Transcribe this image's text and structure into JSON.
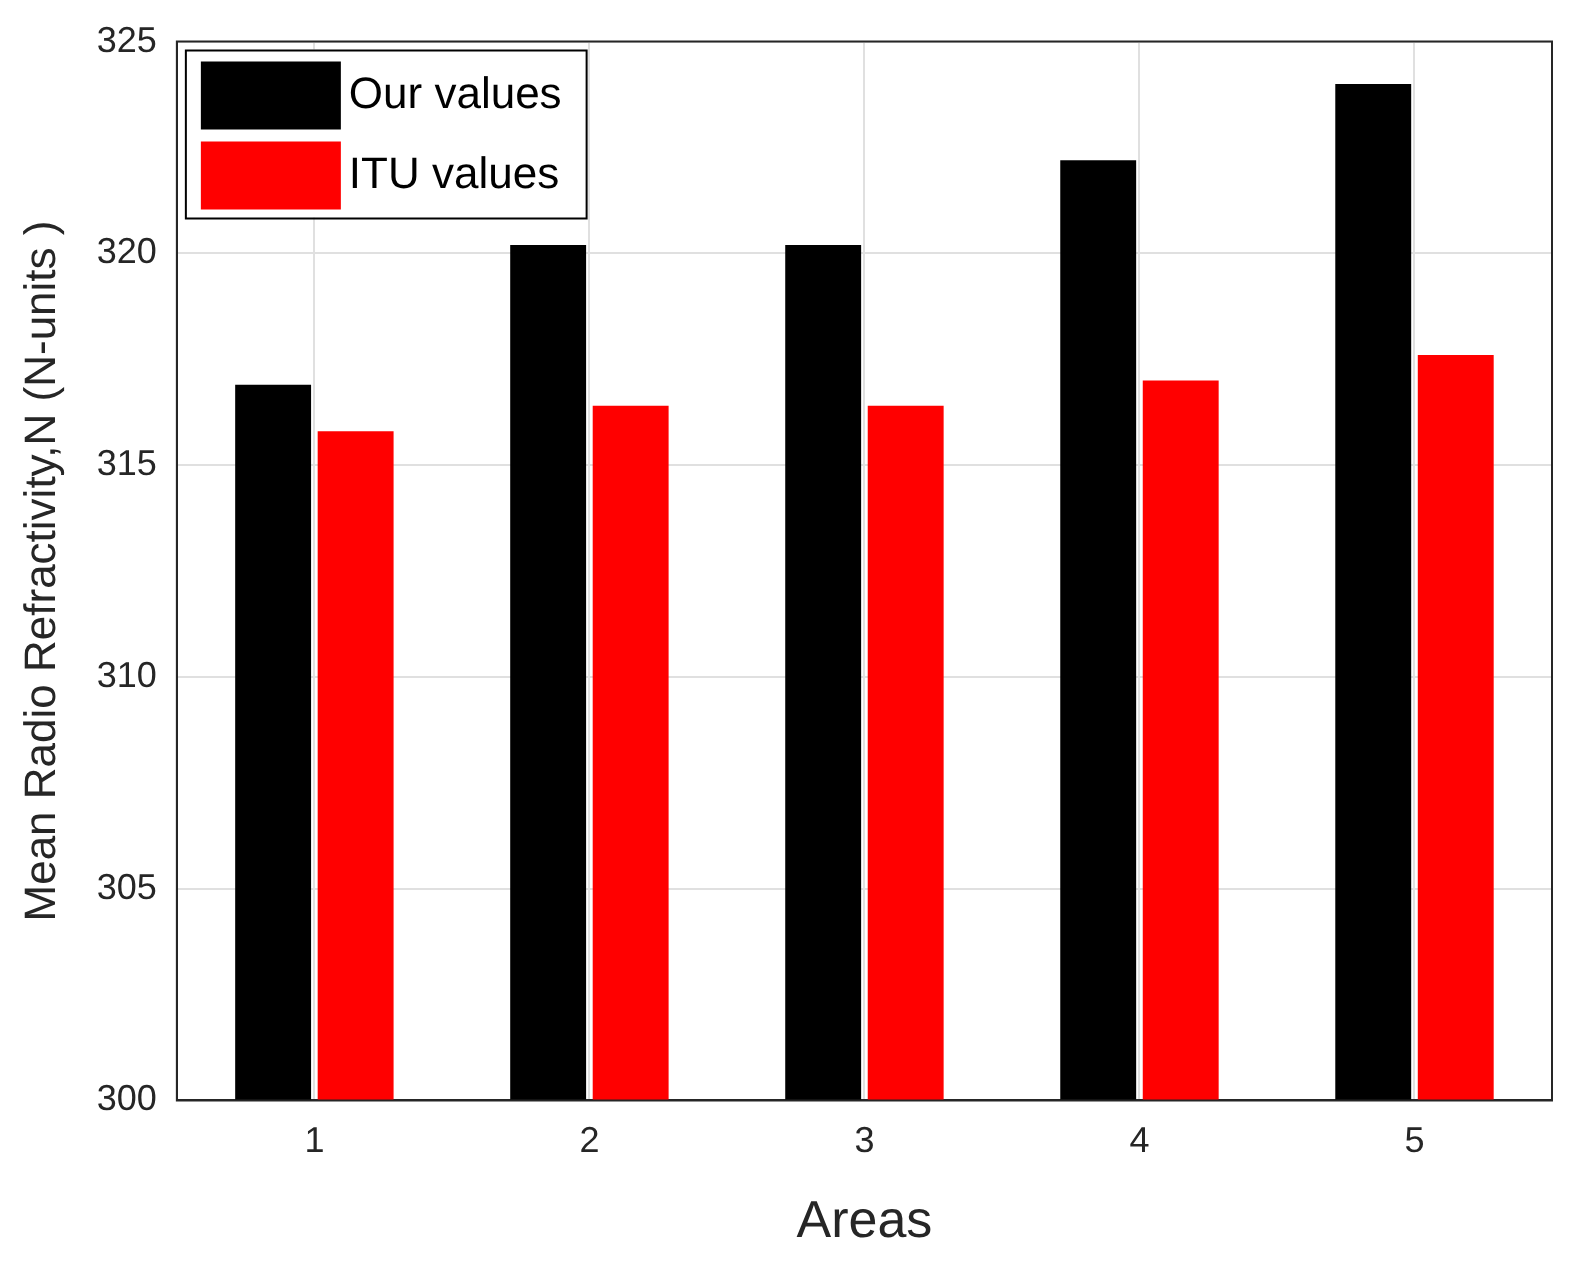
{
  "chart_data": {
    "type": "bar",
    "xlabel": "Areas",
    "ylabel": "Mean Radio Refractivity,N (N-units )",
    "categories": [
      "1",
      "2",
      "3",
      "4",
      "5"
    ],
    "series": [
      {
        "name": "Our values",
        "color": "#000000",
        "values": [
          316.9,
          320.2,
          320.2,
          322.2,
          324.0
        ]
      },
      {
        "name": "ITU values",
        "color": "#ff0000",
        "values": [
          315.8,
          316.4,
          316.4,
          317.0,
          317.6
        ]
      }
    ],
    "ylim": [
      300,
      325
    ],
    "yticks": [
      300,
      305,
      310,
      315,
      320,
      325
    ],
    "grid": true,
    "legend": "top left"
  }
}
